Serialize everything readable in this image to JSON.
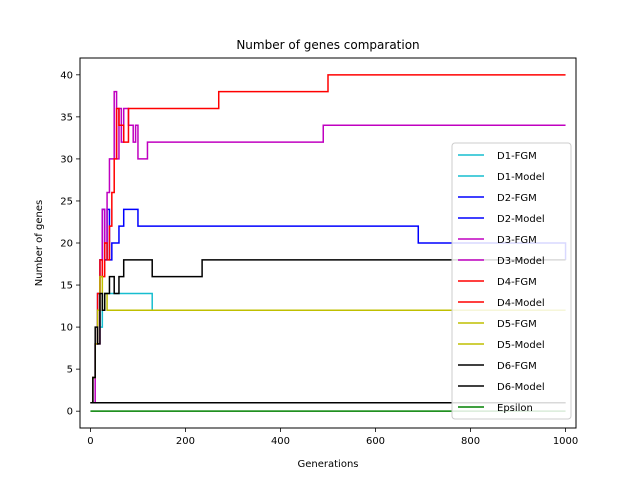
{
  "chart_data": {
    "type": "line",
    "title": "Number of genes comparation",
    "xlabel": "Generations",
    "ylabel": "Number of genes",
    "xlim": [
      -22,
      1022
    ],
    "ylim": [
      -2,
      42
    ],
    "xticks": [
      0,
      200,
      400,
      600,
      800,
      1000
    ],
    "yticks": [
      0,
      5,
      10,
      15,
      20,
      25,
      30,
      35,
      40
    ],
    "grid": false,
    "legend_position": "right",
    "step": true,
    "series": [
      {
        "name": "D1-FGM",
        "color": "#17becf",
        "x": [
          0,
          5,
          10,
          15,
          20,
          25,
          30,
          40,
          60,
          130,
          1000
        ],
        "y": [
          1,
          4,
          8,
          12,
          10,
          12,
          14,
          14,
          14,
          12,
          12
        ]
      },
      {
        "name": "D1-Model",
        "color": "#17becf",
        "x": [
          0,
          1000
        ],
        "y": [
          1,
          1
        ]
      },
      {
        "name": "D2-FGM",
        "color": "#0000ff",
        "x": [
          0,
          5,
          10,
          15,
          20,
          25,
          30,
          35,
          40,
          45,
          50,
          60,
          70,
          90,
          100,
          670,
          690,
          1000
        ],
        "y": [
          1,
          4,
          8,
          14,
          18,
          24,
          18,
          24,
          18,
          20,
          20,
          22,
          24,
          24,
          22,
          22,
          20,
          18
        ]
      },
      {
        "name": "D2-Model",
        "color": "#0000ff",
        "x": [
          0,
          1000
        ],
        "y": [
          1,
          1
        ]
      },
      {
        "name": "D3-FGM",
        "color": "#c000c0",
        "x": [
          0,
          10,
          20,
          25,
          30,
          35,
          40,
          45,
          50,
          55,
          60,
          65,
          70,
          80,
          90,
          95,
          100,
          110,
          120,
          490,
          1000
        ],
        "y": [
          1,
          8,
          16,
          24,
          20,
          26,
          30,
          30,
          38,
          30,
          36,
          32,
          36,
          34,
          32,
          34,
          30,
          30,
          32,
          34,
          34
        ]
      },
      {
        "name": "D3-Model",
        "color": "#c000c0",
        "x": [
          0,
          1000
        ],
        "y": [
          1,
          1
        ]
      },
      {
        "name": "D4-FGM",
        "color": "#ff0000",
        "x": [
          0,
          5,
          10,
          15,
          20,
          25,
          30,
          35,
          40,
          45,
          50,
          55,
          60,
          70,
          80,
          90,
          270,
          500,
          1000
        ],
        "y": [
          1,
          4,
          8,
          14,
          18,
          16,
          20,
          18,
          22,
          26,
          30,
          36,
          34,
          32,
          36,
          36,
          38,
          40,
          40
        ]
      },
      {
        "name": "D4-Model",
        "color": "#ff0000",
        "x": [
          0,
          1000
        ],
        "y": [
          1,
          1
        ]
      },
      {
        "name": "D5-FGM",
        "color": "#bfbf00",
        "x": [
          0,
          5,
          10,
          15,
          20,
          25,
          30,
          35,
          1000
        ],
        "y": [
          1,
          4,
          8,
          12,
          16,
          12,
          14,
          12,
          12
        ]
      },
      {
        "name": "D5-Model",
        "color": "#bfbf00",
        "x": [
          0,
          1000
        ],
        "y": [
          1,
          1
        ]
      },
      {
        "name": "D6-FGM",
        "color": "#000000",
        "x": [
          0,
          5,
          10,
          15,
          20,
          25,
          30,
          40,
          50,
          60,
          70,
          130,
          235,
          1000
        ],
        "y": [
          1,
          4,
          10,
          8,
          14,
          12,
          14,
          16,
          14,
          16,
          18,
          16,
          18,
          18
        ]
      },
      {
        "name": "D6-Model",
        "color": "#000000",
        "x": [
          0,
          1000
        ],
        "y": [
          1,
          1
        ]
      },
      {
        "name": "Epsilon",
        "color": "#008000",
        "x": [
          0,
          1000
        ],
        "y": [
          0,
          0
        ]
      }
    ]
  }
}
